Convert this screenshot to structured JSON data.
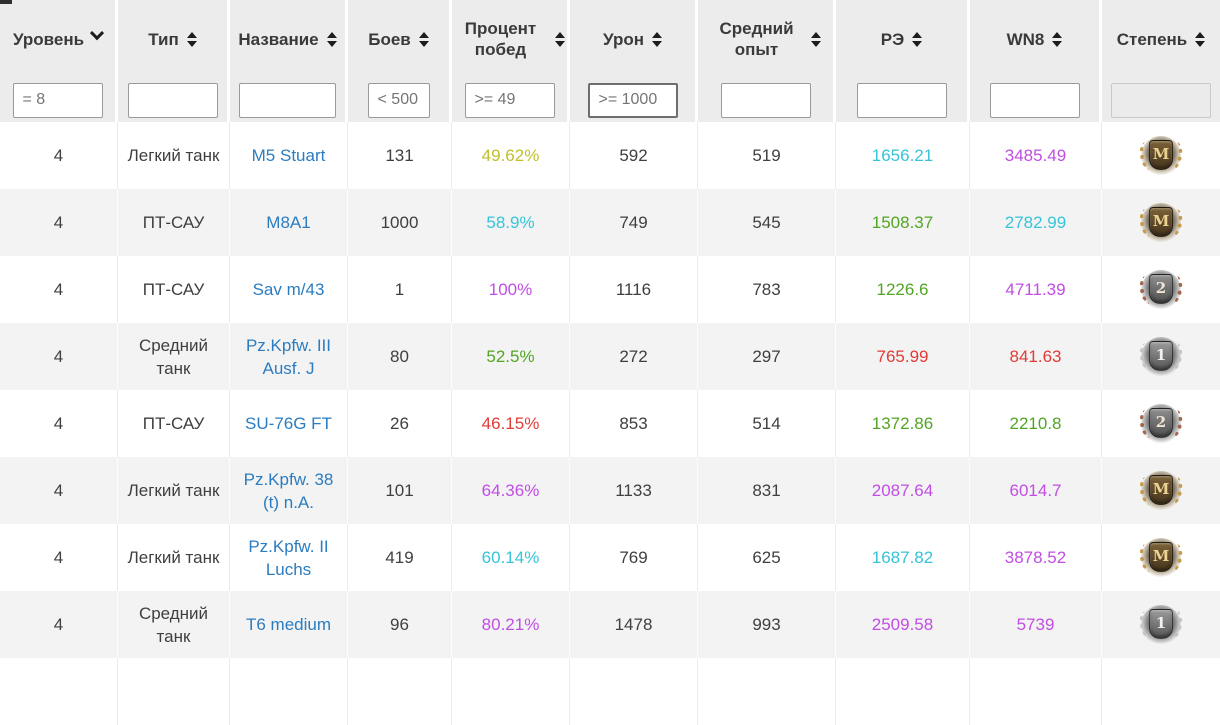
{
  "colors": {
    "link": "#2b7cc0",
    "yellow": "#bfbf2c",
    "cyan": "#35c4da",
    "green": "#52a522",
    "red": "#e13b36",
    "purple": "#c24de4",
    "header_text": "#3a3a3a",
    "body_text": "#3f3f3f",
    "filter_text": "#757575",
    "header_bg": "#ececec",
    "row_alt_bg": "#f3f3f3"
  },
  "header": {
    "columns": [
      {
        "id": "level",
        "label": "Уровень",
        "sort": "desc"
      },
      {
        "id": "type",
        "label": "Тип",
        "sort": "both"
      },
      {
        "id": "name",
        "label": "Название",
        "sort": "both"
      },
      {
        "id": "battles",
        "label": "Боев",
        "sort": "both"
      },
      {
        "id": "winrate",
        "label": "Процент побед",
        "sort": "both"
      },
      {
        "id": "damage",
        "label": "Урон",
        "sort": "both"
      },
      {
        "id": "avg_exp",
        "label": "Средний опыт",
        "sort": "both"
      },
      {
        "id": "re",
        "label": "РЭ",
        "sort": "both"
      },
      {
        "id": "wn8",
        "label": "WN8",
        "sort": "both"
      },
      {
        "id": "mastery",
        "label": "Степень",
        "sort": "both"
      }
    ]
  },
  "filters": [
    {
      "column": "level",
      "value": "= 8",
      "state": "normal"
    },
    {
      "column": "type",
      "value": "",
      "state": "normal"
    },
    {
      "column": "name",
      "value": "",
      "state": "normal"
    },
    {
      "column": "battles",
      "value": "< 500",
      "state": "normal"
    },
    {
      "column": "winrate",
      "value": ">= 49",
      "state": "normal"
    },
    {
      "column": "damage",
      "value": ">= 1000",
      "state": "focused"
    },
    {
      "column": "avg_exp",
      "value": "",
      "state": "normal"
    },
    {
      "column": "re",
      "value": "",
      "state": "normal"
    },
    {
      "column": "wn8",
      "value": "",
      "state": "normal"
    },
    {
      "column": "mastery",
      "value": "",
      "state": "disabled"
    }
  ],
  "rows": [
    {
      "level": "4",
      "type": "Легкий танк",
      "name": "M5 Stuart",
      "battles": "131",
      "winrate": "49.62%",
      "winrate_color": "yellow",
      "damage": "592",
      "avg_exp": "519",
      "re": "1656.21",
      "re_color": "cyan",
      "wn8": "3485.49",
      "wn8_color": "purple",
      "badge": {
        "letter": "M",
        "class": "mastery"
      }
    },
    {
      "level": "4",
      "type": "ПТ-САУ",
      "name": "M8A1",
      "battles": "1000",
      "winrate": "58.9%",
      "winrate_color": "cyan",
      "damage": "749",
      "avg_exp": "545",
      "re": "1508.37",
      "re_color": "green",
      "wn8": "2782.99",
      "wn8_color": "cyan",
      "badge": {
        "letter": "M",
        "class": "mastery"
      }
    },
    {
      "level": "4",
      "type": "ПТ-САУ",
      "name": "Sav m/43",
      "battles": "1",
      "winrate": "100%",
      "winrate_color": "purple",
      "damage": "1116",
      "avg_exp": "783",
      "re": "1226.6",
      "re_color": "green",
      "wn8": "4711.39",
      "wn8_color": "purple",
      "badge": {
        "letter": "2",
        "class": "class2"
      }
    },
    {
      "level": "4",
      "type": "Средний танк",
      "name": "Pz.Kpfw. III Ausf. J",
      "battles": "80",
      "winrate": "52.5%",
      "winrate_color": "green",
      "damage": "272",
      "avg_exp": "297",
      "re": "765.99",
      "re_color": "red",
      "wn8": "841.63",
      "wn8_color": "red",
      "badge": {
        "letter": "1",
        "class": "class1"
      }
    },
    {
      "level": "4",
      "type": "ПТ-САУ",
      "name": "SU-76G FT",
      "battles": "26",
      "winrate": "46.15%",
      "winrate_color": "red",
      "damage": "853",
      "avg_exp": "514",
      "re": "1372.86",
      "re_color": "green",
      "wn8": "2210.8",
      "wn8_color": "green",
      "badge": {
        "letter": "2",
        "class": "class2"
      }
    },
    {
      "level": "4",
      "type": "Легкий танк",
      "name": "Pz.Kpfw. 38 (t) n.A.",
      "battles": "101",
      "winrate": "64.36%",
      "winrate_color": "purple",
      "damage": "1133",
      "avg_exp": "831",
      "re": "2087.64",
      "re_color": "purple",
      "wn8": "6014.7",
      "wn8_color": "purple",
      "badge": {
        "letter": "M",
        "class": "mastery"
      }
    },
    {
      "level": "4",
      "type": "Легкий танк",
      "name": "Pz.Kpfw. II Luchs",
      "battles": "419",
      "winrate": "60.14%",
      "winrate_color": "cyan",
      "damage": "769",
      "avg_exp": "625",
      "re": "1687.82",
      "re_color": "cyan",
      "wn8": "3878.52",
      "wn8_color": "purple",
      "badge": {
        "letter": "M",
        "class": "mastery"
      }
    },
    {
      "level": "4",
      "type": "Средний танк",
      "name": "T6 medium",
      "battles": "96",
      "winrate": "80.21%",
      "winrate_color": "purple",
      "damage": "1478",
      "avg_exp": "993",
      "re": "2509.58",
      "re_color": "purple",
      "wn8": "5739",
      "wn8_color": "purple",
      "badge": {
        "letter": "1",
        "class": "class1"
      }
    }
  ]
}
